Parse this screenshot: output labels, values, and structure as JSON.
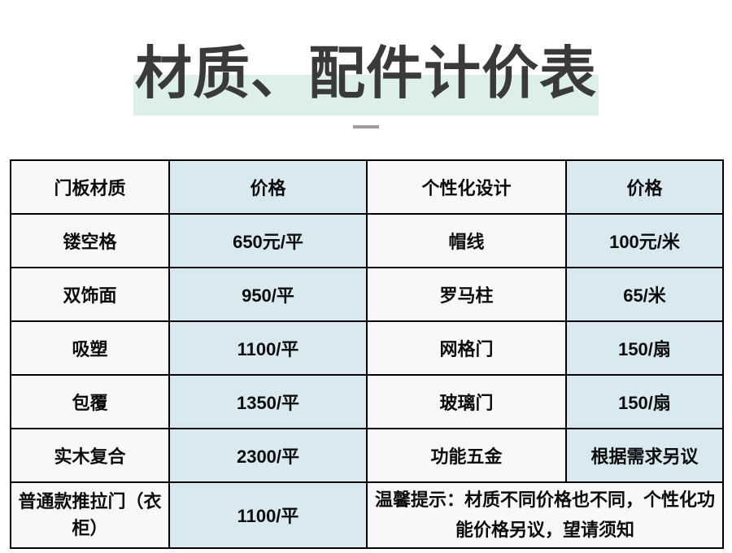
{
  "title": "材质、配件计价表",
  "table": {
    "headers": [
      "门板材质",
      "价格",
      "个性化设计",
      "价格"
    ],
    "rows": [
      [
        "镂空格",
        "650元/平",
        "帽线",
        "100元/米"
      ],
      [
        "双饰面",
        "950/平",
        "罗马柱",
        "65/米"
      ],
      [
        "吸塑",
        "1100/平",
        "网格门",
        "150/扇"
      ],
      [
        "包覆",
        "1350/平",
        "玻璃门",
        "150/扇"
      ],
      [
        "实木复合",
        "2300/平",
        "功能五金",
        "根据需求另议"
      ],
      [
        "普通款推拉门（衣柜）",
        "1100/平",
        "温馨提示：材质不同价格也不同，个性化功能价格另议，望请须知"
      ]
    ]
  },
  "colors": {
    "highlight_band": "#dcefeb",
    "cell_blue": "#d8e9f0",
    "cell_white": "#f8f8f8",
    "border": "#000000",
    "title_text": "#3a3a3a",
    "dash": "#9e9e9e"
  }
}
